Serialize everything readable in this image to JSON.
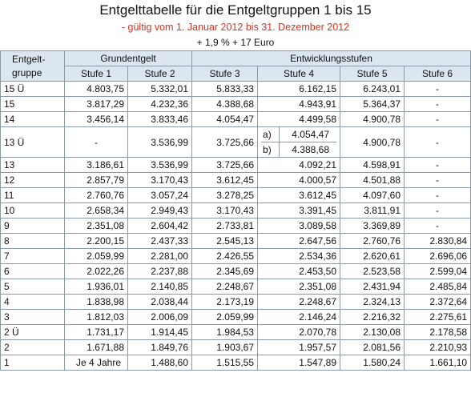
{
  "header": {
    "title": "Entgelttabelle für die Entgeltgruppen 1 bis 15",
    "subtitle": "- gültig vom 1. Januar 2012 bis 31. Dezember 2012",
    "increase": "+ 1,9 % + 17 Euro",
    "accent_color": "#e0301e"
  },
  "table": {
    "col_group_label": "Entgelt-gruppe",
    "grundentgelt_label": "Grundentgelt",
    "entwicklung_label": "Entwicklungsstufen",
    "stufen": [
      "Stufe 1",
      "Stufe 2",
      "Stufe 3",
      "Stufe 4",
      "Stufe 5",
      "Stufe 6"
    ],
    "rows": [
      {
        "g": "15 Ü",
        "s1": "4.803,75",
        "s2": "5.332,01",
        "s3": "5.833,33",
        "s4": "6.162,15",
        "s5": "6.243,01",
        "s6": "-"
      },
      {
        "g": "15",
        "s1": "3.817,29",
        "s2": "4.232,36",
        "s3": "4.388,68",
        "s4": "4.943,91",
        "s5": "5.364,37",
        "s6": "-"
      },
      {
        "g": "14",
        "s1": "3.456,14",
        "s2": "3.833,46",
        "s3": "4.054,47",
        "s4": "4.499,58",
        "s5": "4.900,78",
        "s6": "-"
      },
      {
        "g": "13 Ü",
        "s1": "-",
        "s2": "3.536,99",
        "s3": "3.725,66",
        "s4a_label": "a)",
        "s4a": "4.054,47",
        "s4b_label": "b)",
        "s4b": "4.388,68",
        "s5": "4.900,78",
        "s6": "-"
      },
      {
        "g": "13",
        "s1": "3.186,61",
        "s2": "3.536,99",
        "s3": "3.725,66",
        "s4": "4.092,21",
        "s5": "4.598,91",
        "s6": "-"
      },
      {
        "g": "12",
        "s1": "2.857,79",
        "s2": "3.170,43",
        "s3": "3.612,45",
        "s4": "4.000,57",
        "s5": "4.501,88",
        "s6": "-"
      },
      {
        "g": "11",
        "s1": "2.760,76",
        "s2": "3.057,24",
        "s3": "3.278,25",
        "s4": "3.612,45",
        "s5": "4.097,60",
        "s6": "-"
      },
      {
        "g": "10",
        "s1": "2.658,34",
        "s2": "2.949,43",
        "s3": "3.170,43",
        "s4": "3.391,45",
        "s5": "3.811,91",
        "s6": "-"
      },
      {
        "g": "9",
        "s1": "2.351,08",
        "s2": "2.604,42",
        "s3": "2.733,81",
        "s4": "3.089,58",
        "s5": "3.369,89",
        "s6": "-"
      },
      {
        "g": "8",
        "s1": "2.200,15",
        "s2": "2.437,33",
        "s3": "2.545,13",
        "s4": "2.647,56",
        "s5": "2.760,76",
        "s6": "2.830,84"
      },
      {
        "g": "7",
        "s1": "2.059,99",
        "s2": "2.281,00",
        "s3": "2.426,55",
        "s4": "2.534,36",
        "s5": "2.620,61",
        "s6": "2.696,06"
      },
      {
        "g": "6",
        "s1": "2.022,26",
        "s2": "2.237,88",
        "s3": "2.345,69",
        "s4": "2.453,50",
        "s5": "2.523,58",
        "s6": "2.599,04"
      },
      {
        "g": "5",
        "s1": "1.936,01",
        "s2": "2.140,85",
        "s3": "2.248,67",
        "s4": "2.351,08",
        "s5": "2.431,94",
        "s6": "2.485,84"
      },
      {
        "g": "4",
        "s1": "1.838,98",
        "s2": "2.038,44",
        "s3": "2.173,19",
        "s4": "2.248,67",
        "s5": "2.324,13",
        "s6": "2.372,64"
      },
      {
        "g": "3",
        "s1": "1.812,03",
        "s2": "2.006,09",
        "s3": "2.059,99",
        "s4": "2.146,24",
        "s5": "2.216,32",
        "s6": "2.275,61"
      },
      {
        "g": "2 Ü",
        "s1": "1.731,17",
        "s2": "1.914,45",
        "s3": "1.984,53",
        "s4": "2.070,78",
        "s5": "2.130,08",
        "s6": "2.178,58"
      },
      {
        "g": "2",
        "s1": "1.671,88",
        "s2": "1.849,76",
        "s3": "1.903,67",
        "s4": "1.957,57",
        "s5": "2.081,56",
        "s6": "2.210,93"
      },
      {
        "g": "1",
        "s1": "Je 4 Jahre",
        "s2": "1.488,60",
        "s3": "1.515,55",
        "s4": "1.547,89",
        "s5": "1.580,24",
        "s6": "1.661,10"
      }
    ]
  }
}
